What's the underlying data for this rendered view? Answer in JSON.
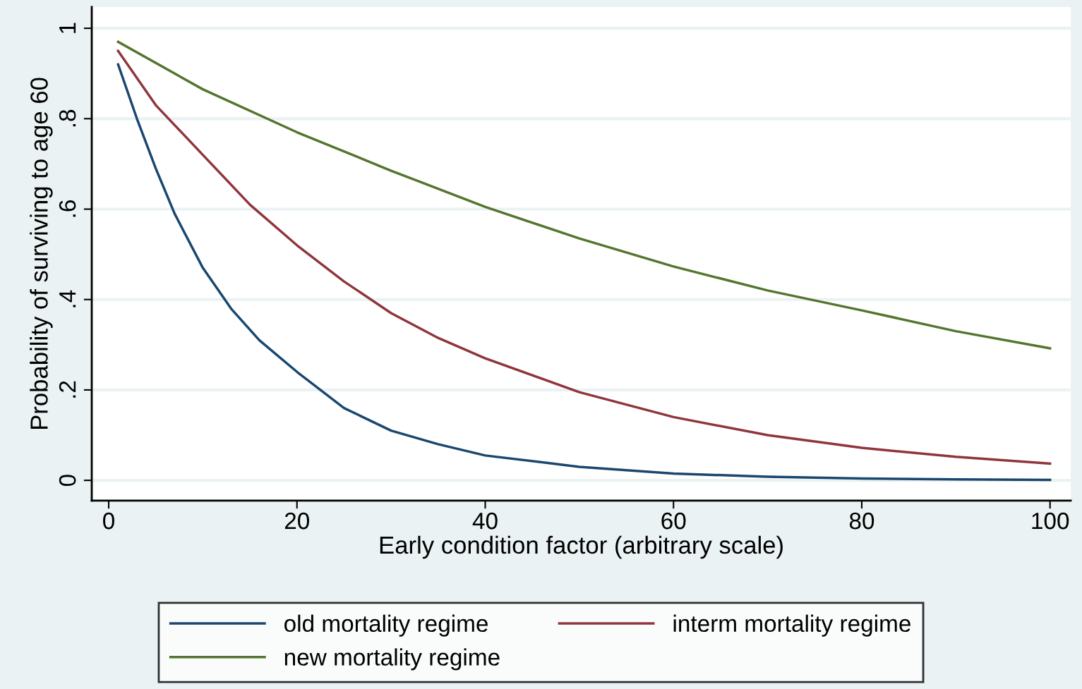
{
  "chart_data": {
    "type": "line",
    "xlabel": "Early condition factor (arbitrary scale)",
    "ylabel": "Probability of surviving to age 60",
    "xlim": [
      -1.8,
      102.2
    ],
    "ylim": [
      -0.045,
      1.047
    ],
    "xticks": [
      0,
      20,
      40,
      60,
      80,
      100
    ],
    "yticks": [
      {
        "value": 0,
        "label": "0"
      },
      {
        "value": 0.2,
        "label": ".2"
      },
      {
        "value": 0.4,
        "label": ".4"
      },
      {
        "value": 0.6,
        "label": ".6"
      },
      {
        "value": 0.8,
        "label": ".8"
      },
      {
        "value": 1,
        "label": "1"
      }
    ],
    "grid": "y",
    "legend": "bottom",
    "line_style": "solid",
    "series": [
      {
        "name": "old mortality regime",
        "color": "#1a476f",
        "x": [
          1,
          3,
          5,
          7,
          10,
          13,
          16,
          20,
          25,
          30,
          35,
          40,
          50,
          60,
          70,
          80,
          90,
          100
        ],
        "values": [
          0.92,
          0.8,
          0.69,
          0.59,
          0.47,
          0.38,
          0.31,
          0.24,
          0.16,
          0.11,
          0.08,
          0.055,
          0.03,
          0.015,
          0.008,
          0.004,
          0.002,
          0.001
        ]
      },
      {
        "name": "interm mortality regime",
        "color": "#90353b",
        "x": [
          1,
          5,
          10,
          15,
          20,
          25,
          30,
          35,
          40,
          50,
          60,
          70,
          80,
          90,
          100
        ],
        "values": [
          0.95,
          0.83,
          0.72,
          0.61,
          0.52,
          0.44,
          0.37,
          0.315,
          0.27,
          0.195,
          0.14,
          0.1,
          0.072,
          0.052,
          0.037
        ]
      },
      {
        "name": "new mortality regime",
        "color": "#55752f",
        "x": [
          1,
          10,
          20,
          30,
          40,
          50,
          60,
          70,
          80,
          90,
          100
        ],
        "values": [
          0.97,
          0.865,
          0.77,
          0.685,
          0.605,
          0.535,
          0.473,
          0.42,
          0.376,
          0.33,
          0.292
        ]
      }
    ]
  }
}
